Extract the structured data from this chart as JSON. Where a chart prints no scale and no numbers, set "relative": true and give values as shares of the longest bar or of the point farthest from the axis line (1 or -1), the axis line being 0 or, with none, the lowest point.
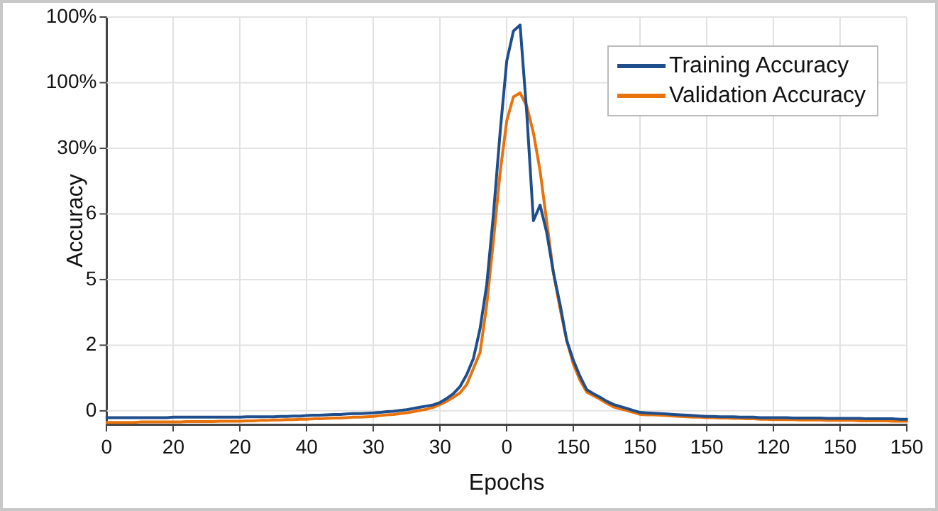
{
  "chart_data": {
    "type": "line",
    "xlabel": "Epochs",
    "ylabel": "Accuracy",
    "relative": true,
    "categories": [
      "0",
      null,
      null,
      null,
      null,
      null,
      null,
      null,
      null,
      null,
      "20",
      null,
      null,
      null,
      null,
      null,
      null,
      null,
      null,
      null,
      "20",
      null,
      null,
      null,
      null,
      null,
      null,
      null,
      null,
      null,
      "40",
      null,
      null,
      null,
      null,
      null,
      null,
      null,
      null,
      null,
      "30",
      null,
      null,
      null,
      null,
      null,
      null,
      null,
      null,
      null,
      "30",
      null,
      null,
      null,
      null,
      null,
      null,
      null,
      null,
      null,
      "0",
      null,
      null,
      null,
      null,
      null,
      null,
      null,
      null,
      null,
      "150",
      null,
      null,
      null,
      null,
      null,
      null,
      null,
      null,
      null,
      "150",
      null,
      null,
      null,
      null,
      null,
      null,
      null,
      null,
      null,
      "150",
      null,
      null,
      null,
      null,
      null,
      null,
      null,
      null,
      null,
      "120",
      null,
      null,
      null,
      null,
      null,
      null,
      null,
      null,
      null,
      "150",
      null,
      null,
      null,
      null,
      null,
      null,
      null,
      null,
      null,
      "150"
    ],
    "annotations": [
      "0",
      "2",
      "5",
      "6",
      "30%",
      "100%",
      "100%"
    ],
    "grid": true,
    "legend": "top right",
    "marker": "none",
    "line_style": "solid",
    "series": [
      {
        "name": "Training Accuracy",
        "color": "#1f4e8c",
        "values": [
          0.017,
          0.017,
          0.017,
          0.017,
          0.017,
          0.017,
          0.017,
          0.017,
          0.017,
          0.017,
          0.018,
          0.018,
          0.018,
          0.018,
          0.018,
          0.018,
          0.018,
          0.018,
          0.018,
          0.018,
          0.018,
          0.019,
          0.019,
          0.019,
          0.019,
          0.019,
          0.02,
          0.02,
          0.021,
          0.021,
          0.022,
          0.023,
          0.023,
          0.024,
          0.025,
          0.025,
          0.026,
          0.027,
          0.027,
          0.028,
          0.029,
          0.03,
          0.032,
          0.033,
          0.035,
          0.037,
          0.04,
          0.043,
          0.046,
          0.049,
          0.055,
          0.065,
          0.077,
          0.095,
          0.125,
          0.165,
          0.24,
          0.35,
          0.525,
          0.73,
          0.91,
          0.985,
          1,
          0.78,
          0.51,
          0.549,
          0.48,
          0.38,
          0.3,
          0.21,
          0.16,
          0.12,
          0.087,
          0.077,
          0.068,
          0.058,
          0.05,
          0.045,
          0.04,
          0.035,
          0.03,
          0.029,
          0.028,
          0.027,
          0.026,
          0.025,
          0.024,
          0.023,
          0.022,
          0.021,
          0.02,
          0.02,
          0.019,
          0.019,
          0.019,
          0.018,
          0.018,
          0.018,
          0.017,
          0.017,
          0.017,
          0.017,
          0.017,
          0.016,
          0.016,
          0.016,
          0.016,
          0.016,
          0.015,
          0.015,
          0.015,
          0.015,
          0.015,
          0.015,
          0.014,
          0.014,
          0.014,
          0.014,
          0.014,
          0.013,
          0.013
        ]
      },
      {
        "name": "Validation Accuracy",
        "color": "#e8720c",
        "values": [
          0.005,
          0.005,
          0.005,
          0.005,
          0.005,
          0.006,
          0.006,
          0.006,
          0.006,
          0.006,
          0.006,
          0.006,
          0.007,
          0.007,
          0.007,
          0.007,
          0.007,
          0.008,
          0.008,
          0.008,
          0.008,
          0.009,
          0.009,
          0.01,
          0.01,
          0.011,
          0.011,
          0.012,
          0.012,
          0.013,
          0.013,
          0.014,
          0.014,
          0.015,
          0.016,
          0.016,
          0.017,
          0.018,
          0.018,
          0.019,
          0.02,
          0.022,
          0.024,
          0.025,
          0.027,
          0.029,
          0.032,
          0.035,
          0.038,
          0.043,
          0.05,
          0.058,
          0.068,
          0.079,
          0.1,
          0.14,
          0.18,
          0.3,
          0.46,
          0.63,
          0.76,
          0.82,
          0.83,
          0.797,
          0.73,
          0.635,
          0.507,
          0.38,
          0.29,
          0.21,
          0.15,
          0.11,
          0.081,
          0.072,
          0.063,
          0.053,
          0.044,
          0.039,
          0.035,
          0.03,
          0.025,
          0.024,
          0.024,
          0.023,
          0.022,
          0.021,
          0.02,
          0.019,
          0.018,
          0.018,
          0.017,
          0.017,
          0.016,
          0.016,
          0.015,
          0.015,
          0.014,
          0.014,
          0.013,
          0.013,
          0.012,
          0.012,
          0.012,
          0.012,
          0.011,
          0.011,
          0.011,
          0.011,
          0.01,
          0.01,
          0.01,
          0.01,
          0.01,
          0.009,
          0.009,
          0.009,
          0.009,
          0.009,
          0.008,
          0.008,
          0.008
        ]
      }
    ]
  }
}
